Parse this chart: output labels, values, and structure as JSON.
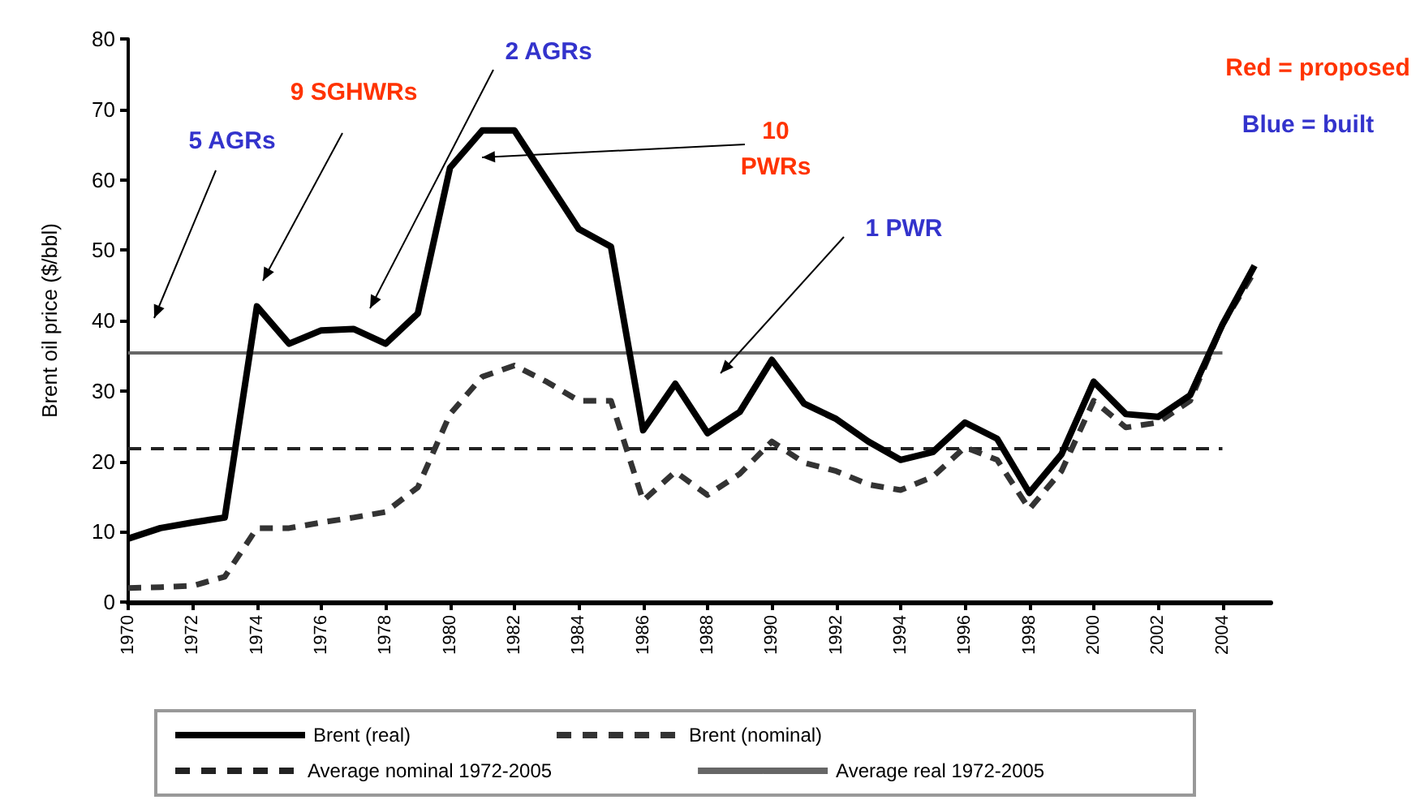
{
  "chart_data": {
    "type": "line",
    "ylabel": "Brent oil price ($/bbl)",
    "x": [
      1970,
      1971,
      1972,
      1973,
      1974,
      1975,
      1976,
      1977,
      1978,
      1979,
      1980,
      1981,
      1982,
      1983,
      1984,
      1985,
      1986,
      1987,
      1988,
      1989,
      1990,
      1991,
      1992,
      1993,
      1994,
      1995,
      1996,
      1997,
      1998,
      1999,
      2000,
      2001,
      2002,
      2003,
      2004,
      2005
    ],
    "series": [
      {
        "name": "Brent (real)",
        "color": "#000000",
        "line_style": "solid",
        "values": [
          9,
          10.5,
          11.3,
          12,
          42,
          36.7,
          38.6,
          38.8,
          36.7,
          41,
          61.7,
          67,
          67,
          60,
          53,
          50.5,
          24.4,
          31,
          24,
          27,
          34.4,
          28.2,
          26,
          22.8,
          20.2,
          21.3,
          25.5,
          23.2,
          15.5,
          21,
          31.3,
          26.7,
          26.3,
          29.4,
          39.4,
          47.8
        ]
      },
      {
        "name": "Brent (nominal)",
        "color": "#333333",
        "line_style": "dashed",
        "values": [
          2,
          2.1,
          2.3,
          3.6,
          10.5,
          10.5,
          11.3,
          12,
          12.8,
          16.3,
          26.7,
          32,
          33.6,
          31.3,
          28.6,
          28.6,
          14.4,
          18.5,
          15.2,
          18.2,
          22.8,
          19.8,
          18.6,
          16.7,
          15.9,
          17.8,
          22,
          20.2,
          13.2,
          18.6,
          28.6,
          24.8,
          25.5,
          28.6,
          39.4,
          47
        ]
      },
      {
        "name": "Average nominal 1972-2005",
        "color": "#222222",
        "line_style": "dashed",
        "values": [
          21.8,
          21.8,
          21.8,
          21.8,
          21.8,
          21.8,
          21.8,
          21.8,
          21.8,
          21.8,
          21.8,
          21.8,
          21.8,
          21.8,
          21.8,
          21.8,
          21.8,
          21.8,
          21.8,
          21.8,
          21.8,
          21.8,
          21.8,
          21.8,
          21.8,
          21.8,
          21.8,
          21.8,
          21.8,
          21.8,
          21.8,
          21.8,
          21.8,
          21.8,
          21.8,
          null
        ]
      },
      {
        "name": "Average real 1972-2005",
        "color": "#666666",
        "line_style": "solid",
        "values": [
          35.4,
          35.4,
          35.4,
          35.4,
          35.4,
          35.4,
          35.4,
          35.4,
          35.4,
          35.4,
          35.4,
          35.4,
          35.4,
          35.4,
          35.4,
          35.4,
          35.4,
          35.4,
          35.4,
          35.4,
          35.4,
          35.4,
          35.4,
          35.4,
          35.4,
          35.4,
          35.4,
          35.4,
          35.4,
          35.4,
          35.4,
          35.4,
          35.4,
          35.4,
          35.4,
          null
        ]
      }
    ],
    "xlim": [
      1970,
      2005.5
    ],
    "xticks": [
      1970,
      1972,
      1974,
      1976,
      1978,
      1980,
      1982,
      1984,
      1986,
      1988,
      1990,
      1992,
      1994,
      1996,
      1998,
      2000,
      2002,
      2004
    ],
    "ylim": [
      0,
      80
    ],
    "yticks": [
      0,
      10,
      20,
      30,
      40,
      50,
      60,
      70,
      80
    ],
    "grid": false,
    "legend": "bottom",
    "marker": "none",
    "annotations": [
      "5 AGRs",
      "9 SGHWRs",
      "2 AGRs",
      "10\nPWRs",
      "1 PWR",
      "Red = proposed",
      "Blue = built"
    ]
  }
}
